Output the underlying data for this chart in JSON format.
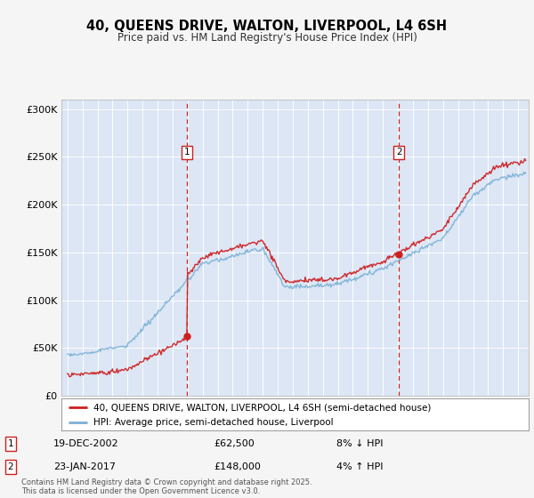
{
  "title": "40, QUEENS DRIVE, WALTON, LIVERPOOL, L4 6SH",
  "subtitle": "Price paid vs. HM Land Registry's House Price Index (HPI)",
  "background_color": "#f5f5f5",
  "plot_bg_color": "#dce6f5",
  "legend_label_red": "40, QUEENS DRIVE, WALTON, LIVERPOOL, L4 6SH (semi-detached house)",
  "legend_label_blue": "HPI: Average price, semi-detached house, Liverpool",
  "annotation1_date": "19-DEC-2002",
  "annotation1_price": "£62,500",
  "annotation1_hpi": "8% ↓ HPI",
  "annotation2_date": "23-JAN-2017",
  "annotation2_price": "£148,000",
  "annotation2_hpi": "4% ↑ HPI",
  "footer": "Contains HM Land Registry data © Crown copyright and database right 2025.\nThis data is licensed under the Open Government Licence v3.0.",
  "sale1_year": 2002.96,
  "sale1_value": 62500,
  "sale2_year": 2017.07,
  "sale2_value": 148000,
  "ylim": [
    0,
    310000
  ],
  "xlim_start": 1994.6,
  "xlim_end": 2025.7,
  "yticks": [
    0,
    50000,
    100000,
    150000,
    200000,
    250000,
    300000
  ],
  "ytick_labels": [
    "£0",
    "£50K",
    "£100K",
    "£150K",
    "£200K",
    "£250K",
    "£300K"
  ],
  "xticks": [
    1995,
    1996,
    1997,
    1998,
    1999,
    2000,
    2001,
    2002,
    2003,
    2004,
    2005,
    2006,
    2007,
    2008,
    2009,
    2010,
    2011,
    2012,
    2013,
    2014,
    2015,
    2016,
    2017,
    2018,
    2019,
    2020,
    2021,
    2022,
    2023,
    2024,
    2025
  ]
}
